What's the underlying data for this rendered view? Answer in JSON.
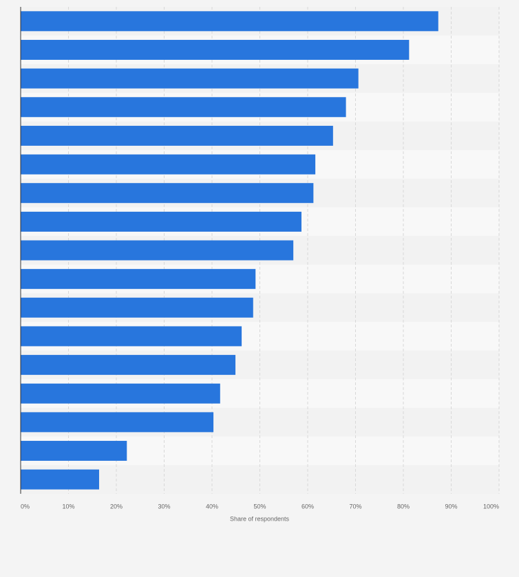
{
  "chart_data": {
    "type": "bar",
    "orientation": "horizontal",
    "x_label": "Share of respondents",
    "categories": [
      null,
      null,
      null,
      null,
      null,
      null,
      null,
      null,
      null,
      null,
      null,
      null,
      null,
      null,
      null,
      null,
      null
    ],
    "values": [
      87.3,
      81.2,
      70.6,
      68.0,
      65.3,
      61.6,
      61.2,
      58.7,
      57.0,
      49.1,
      48.6,
      46.2,
      44.9,
      41.7,
      40.3,
      22.2,
      16.4
    ],
    "color": "#2876dd",
    "xlim": [
      0,
      100
    ],
    "xticks": [
      {
        "value": 0,
        "label": "0%"
      },
      {
        "value": 10,
        "label": "10%"
      },
      {
        "value": 20,
        "label": "20%"
      },
      {
        "value": 30,
        "label": "30%"
      },
      {
        "value": 40,
        "label": "40%"
      },
      {
        "value": 50,
        "label": "50%"
      },
      {
        "value": 60,
        "label": "60%"
      },
      {
        "value": 70,
        "label": "70%"
      },
      {
        "value": 80,
        "label": "80%"
      },
      {
        "value": 90,
        "label": "90%"
      },
      {
        "value": 100,
        "label": "100%"
      }
    ],
    "grid": true
  }
}
